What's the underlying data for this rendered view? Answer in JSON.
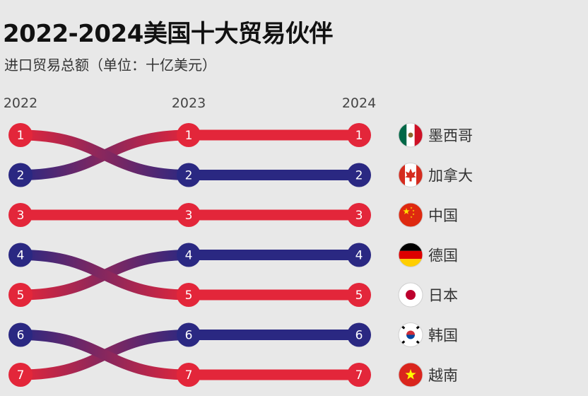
{
  "title": "2022-2024美国十大贸易伙伴",
  "subtitle": "进口贸易总额（单位：十亿美元）",
  "colors": {
    "high": "#e3263a",
    "low": "#2a2882",
    "background": "#e8e8e8"
  },
  "chart_data": {
    "type": "bump",
    "title": "2022-2024美国十大贸易伙伴",
    "subtitle": "进口贸易总额（单位：十亿美元）",
    "years": [
      "2022",
      "2023",
      "2024"
    ],
    "series": [
      {
        "name": "墨西哥",
        "flag": "mexico-flag",
        "ranks": [
          2,
          1,
          1
        ]
      },
      {
        "name": "加拿大",
        "flag": "canada-flag",
        "ranks": [
          1,
          2,
          2
        ]
      },
      {
        "name": "中国",
        "flag": "china-flag",
        "ranks": [
          3,
          3,
          3
        ]
      },
      {
        "name": "德国",
        "flag": "germany-flag",
        "ranks": [
          5,
          4,
          4
        ]
      },
      {
        "name": "日本",
        "flag": "japan-flag",
        "ranks": [
          4,
          5,
          5
        ]
      },
      {
        "name": "韩国",
        "flag": "south-korea-flag",
        "ranks": [
          7,
          6,
          6
        ]
      },
      {
        "name": "越南",
        "flag": "vietnam-flag",
        "ranks": [
          6,
          7,
          7
        ]
      }
    ],
    "rank_labels": [
      "1",
      "2",
      "3",
      "4",
      "5",
      "6",
      "7"
    ]
  }
}
